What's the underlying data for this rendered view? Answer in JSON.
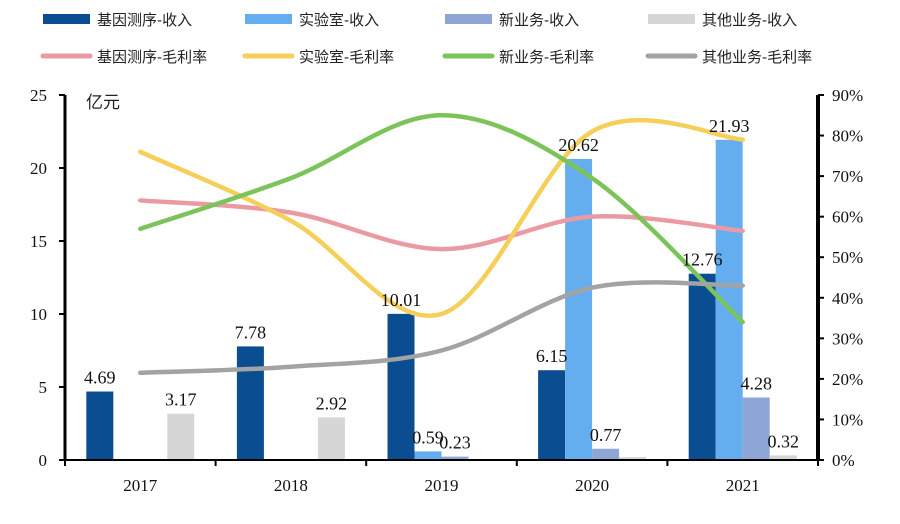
{
  "chart_data": {
    "type": "bar+line",
    "title": "",
    "unit_label": "亿元",
    "categories": [
      "2017",
      "2018",
      "2019",
      "2020",
      "2021"
    ],
    "left_axis": {
      "ylim": [
        0,
        25
      ],
      "ticks": [
        0,
        5,
        10,
        15,
        20,
        25
      ],
      "tick_labels": [
        "0",
        "5",
        "10",
        "15",
        "20",
        "25"
      ]
    },
    "right_axis": {
      "ylim": [
        0,
        0.9
      ],
      "ticks": [
        0,
        0.1,
        0.2,
        0.3,
        0.4,
        0.5,
        0.6,
        0.7,
        0.8,
        0.9
      ],
      "tick_labels": [
        "0%",
        "10%",
        "20%",
        "30%",
        "40%",
        "50%",
        "60%",
        "70%",
        "80%",
        "90%"
      ]
    },
    "grid": false,
    "legend_position": "top",
    "bar_series": [
      {
        "name": "基因测序-收入",
        "color": "#0b4d91",
        "values": [
          4.69,
          7.78,
          10.01,
          6.15,
          12.76
        ],
        "labels": [
          "4.69",
          "7.78",
          "10.01",
          "6.15",
          "12.76"
        ]
      },
      {
        "name": "实验室-收入",
        "color": "#64aef0",
        "values": [
          0,
          0,
          0.59,
          20.62,
          21.93
        ],
        "labels": [
          "",
          "",
          "0.59",
          "20.62",
          "21.93"
        ]
      },
      {
        "name": "新业务-收入",
        "color": "#8ea6d6",
        "values": [
          0,
          0,
          0.23,
          0.77,
          4.28
        ],
        "labels": [
          "",
          "",
          "0.23",
          "0.77",
          "4.28"
        ]
      },
      {
        "name": "其他业务-收入",
        "color": "#d6d6d6",
        "values": [
          3.17,
          2.92,
          0,
          0.2,
          0.32
        ],
        "labels": [
          "3.17",
          "2.92",
          "",
          "",
          "0.32"
        ]
      }
    ],
    "line_series": [
      {
        "name": "基因测序-毛利率",
        "color": "#eb9aa3",
        "values": [
          0.64,
          0.61,
          0.52,
          0.6,
          0.565
        ]
      },
      {
        "name": "实验室-毛利率",
        "color": "#f5cf58",
        "values": [
          0.76,
          0.59,
          0.36,
          0.81,
          0.79
        ]
      },
      {
        "name": "新业务-毛利率",
        "color": "#7cc35a",
        "values": [
          0.57,
          0.695,
          0.85,
          0.695,
          0.34
        ]
      },
      {
        "name": "其他业务-毛利率",
        "color": "#a3a3a3",
        "values": [
          0.215,
          0.23,
          0.27,
          0.425,
          0.43
        ]
      }
    ]
  }
}
